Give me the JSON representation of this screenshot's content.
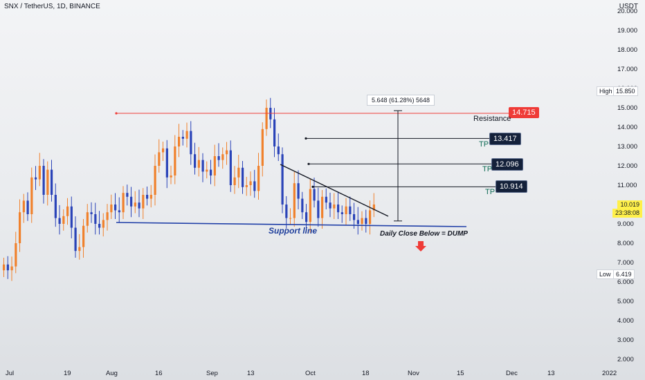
{
  "header": {
    "symbol": "SNX / TetherUS, 1D, BINANCE",
    "currency": "USDT"
  },
  "price_axis": {
    "ticks": [
      "2.000",
      "3.000",
      "4.000",
      "5.000",
      "6.000",
      "7.000",
      "8.000",
      "9.000",
      "10.000",
      "11.000",
      "12.000",
      "13.000",
      "14.000",
      "15.000",
      "16.000",
      "17.000",
      "18.000",
      "19.000",
      "20.000"
    ]
  },
  "date_axis": {
    "ticks": [
      "Jul",
      "19",
      "Aug",
      "16",
      "Sep",
      "13",
      "Oct",
      "18",
      "Nov",
      "15",
      "Dec",
      "13",
      "2022"
    ]
  },
  "tags": {
    "high_label": "High",
    "high_value": "15.850",
    "low_label": "Low",
    "low_value": "6.419",
    "current_price": "10.019",
    "countdown": "23:38:08"
  },
  "annotations": {
    "resistance_value": "14.715",
    "resistance_label": "Resistance",
    "tp1_value": "13.417",
    "tp2_value": "12.096",
    "tp3_value": "10.914",
    "tp_label": "TP",
    "support_label": "Support line",
    "dump_label": "Daily Close Below = DUMP",
    "measure_label": "5.648 (61.28%) 5648"
  },
  "colors": {
    "bull": "#f0812c",
    "bear": "#2a43b8",
    "resistance": "#ef3b37",
    "support": "#2140a8",
    "tp_box": "#14213a"
  },
  "chart_data": {
    "type": "candlestick",
    "title": "SNX / TetherUS, 1D, BINANCE",
    "ylim": [
      2,
      20
    ],
    "ohlc_approx_close": [
      6.9,
      6.6,
      6.8,
      8.0,
      9.6,
      10.2,
      9.5,
      11.4,
      11.3,
      12.0,
      10.5,
      11.8,
      10.5,
      9.3,
      9.0,
      9.4,
      9.9,
      8.8,
      7.6,
      7.8,
      8.9,
      9.6,
      9.5,
      9.0,
      8.8,
      9.2,
      9.6,
      10.0,
      9.7,
      9.6,
      10.6,
      10.4,
      9.9,
      10.1,
      9.8,
      10.5,
      10.3,
      10.5,
      12.0,
      12.7,
      12.9,
      11.4,
      11.5,
      13.0,
      13.5,
      13.4,
      13.8,
      12.6,
      11.9,
      12.3,
      11.7,
      11.8,
      11.5,
      12.5,
      12.3,
      12.6,
      12.8,
      11.0,
      11.4,
      11.9,
      10.9,
      11.0,
      11.2,
      10.7,
      12.0,
      13.9,
      15.0,
      14.4,
      13.0,
      12.6,
      10.0,
      9.3,
      9.3,
      11.1,
      10.3,
      9.6,
      9.1,
      10.8,
      10.2,
      9.3,
      10.4,
      10.1,
      9.8,
      10.0,
      9.6,
      9.5,
      9.9,
      9.5,
      9.2,
      9.0,
      9.3,
      9.0,
      9.7,
      10.0
    ],
    "levels": {
      "resistance": 14.715,
      "tp": [
        13.417,
        12.096,
        10.914
      ],
      "high": 15.85,
      "low": 6.419,
      "current": 10.019
    },
    "measure": {
      "from": 9.1,
      "to": 14.85,
      "change": "5.648 (61.28%)"
    }
  }
}
